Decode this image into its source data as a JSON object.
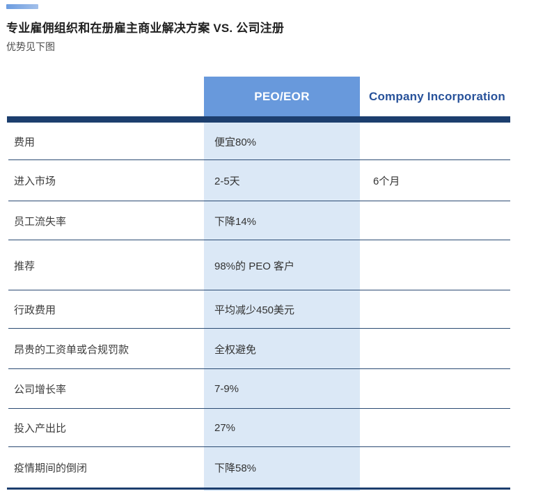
{
  "page": {
    "title": "专业雇佣组织和在册雇主商业解决方案 VS. 公司注册",
    "subtitle": "优势见下图"
  },
  "colors": {
    "accent": "#6c9ce0",
    "header-fill": "#6899dc",
    "light-column": "#dbe8f6",
    "navy": "#1c3e6e",
    "thin-line": "#2a4a72",
    "company-text": "#28529a"
  },
  "table": {
    "columns": [
      "",
      "PEO/EOR",
      "Company Incorporation"
    ],
    "rows": [
      {
        "label": "费用",
        "peo": "便宜80%",
        "company": ""
      },
      {
        "label": "进入市场",
        "peo": "2-5天",
        "company": "6个月"
      },
      {
        "label": "员工流失率",
        "peo": "下降14%",
        "company": ""
      },
      {
        "label": "推荐",
        "peo": "98%的 PEO 客户",
        "company": ""
      },
      {
        "label": "行政费用",
        "peo": "平均减少450美元",
        "company": ""
      },
      {
        "label": "昂贵的工资单或合规罚款",
        "peo": "全权避免",
        "company": ""
      },
      {
        "label": "公司增长率",
        "peo": "7-9%",
        "company": ""
      },
      {
        "label": "投入产出比",
        "peo": "27%",
        "company": ""
      },
      {
        "label": "疫情期间的倒闭",
        "peo": "下降58%",
        "company": ""
      }
    ]
  }
}
